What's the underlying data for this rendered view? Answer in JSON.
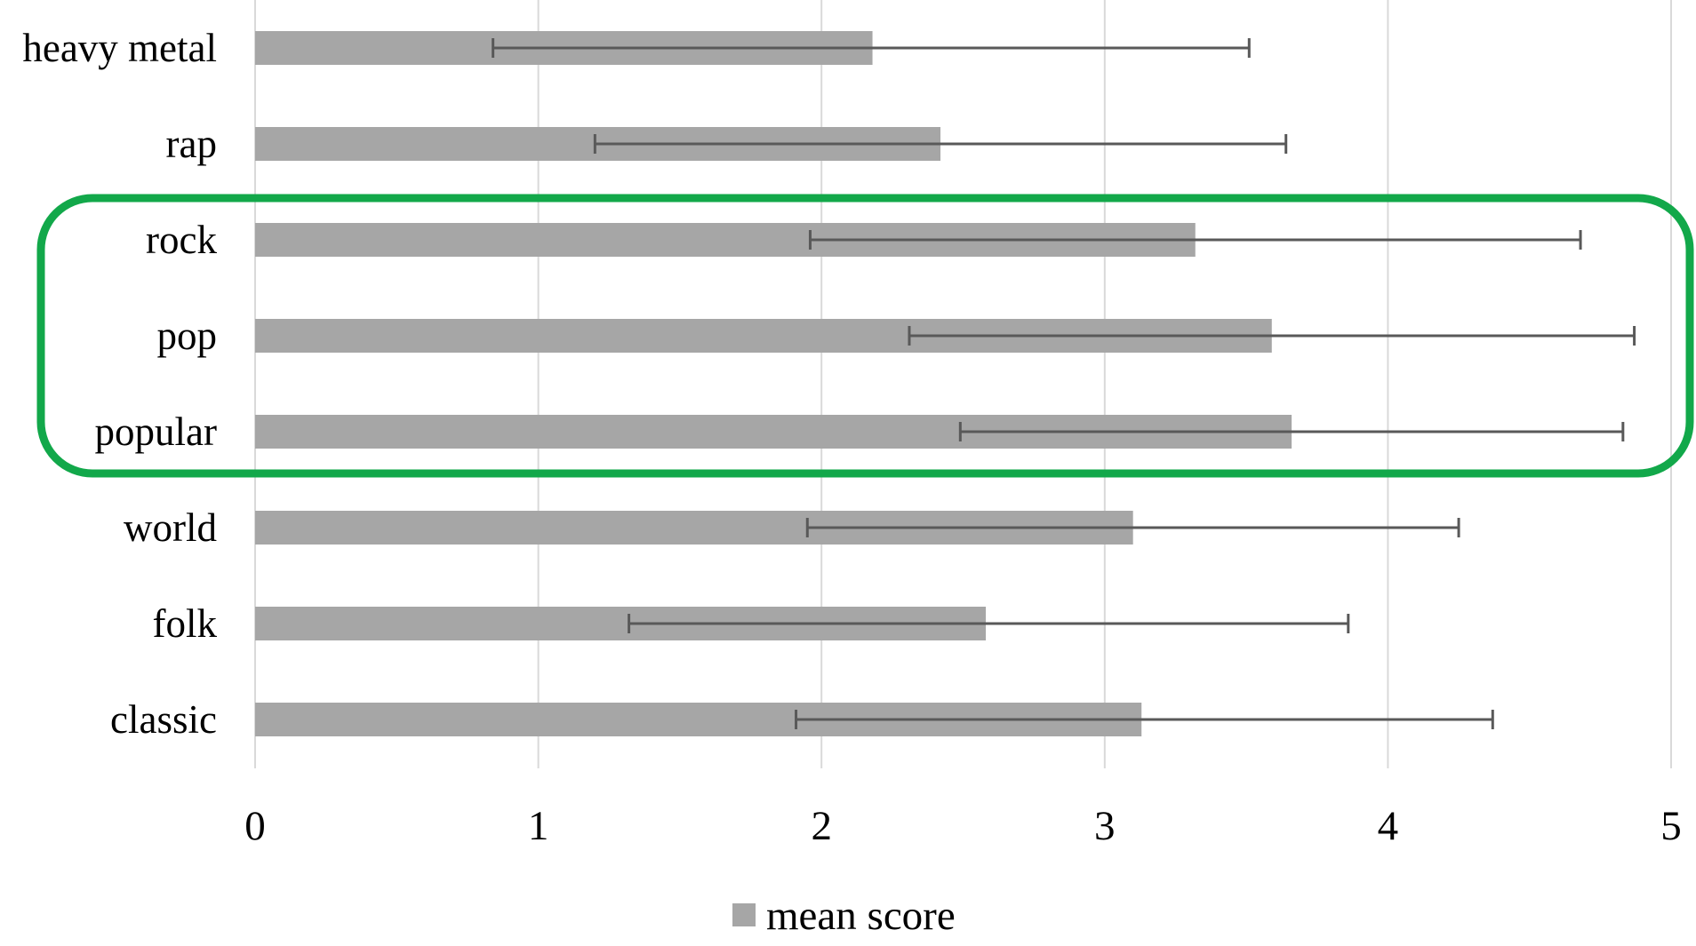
{
  "chart_data": {
    "type": "bar",
    "orientation": "horizontal",
    "categories": [
      "heavy metal",
      "rap",
      "rock",
      "pop",
      "popular",
      "world",
      "folk",
      "classic"
    ],
    "series": [
      {
        "name": "mean score",
        "values": [
          2.18,
          2.42,
          3.32,
          3.59,
          3.66,
          3.1,
          2.58,
          3.13
        ],
        "error_low": [
          0.84,
          1.2,
          1.96,
          2.31,
          2.49,
          1.95,
          1.32,
          1.91
        ],
        "error_high": [
          3.51,
          3.64,
          4.68,
          4.87,
          4.83,
          4.25,
          3.86,
          4.37
        ]
      }
    ],
    "xlim": [
      0,
      5
    ],
    "x_ticks": [
      "0",
      "1",
      "2",
      "3",
      "4",
      "5"
    ],
    "grid": "vertical",
    "legend": "bottom-center",
    "highlight": {
      "categories": [
        "rock",
        "pop",
        "popular"
      ],
      "color": "#12a84a"
    },
    "colors": {
      "bar": "#a6a6a6",
      "error_bar": "#595959",
      "grid": "#d9d9d9"
    }
  }
}
